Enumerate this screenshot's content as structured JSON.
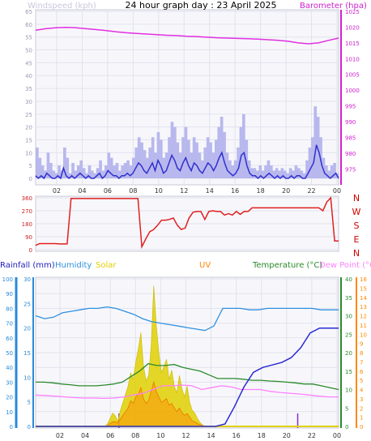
{
  "title": "24 hour graph day : 23 April 2025",
  "colors": {
    "wind_avg": "#3030d0",
    "wind_gust": "#b8b8ee",
    "barometer": "#e030e0",
    "wind_dir": "#e02020",
    "rainfall": "#2a2ad6",
    "humidity": "#3090e0",
    "solar": "#e0d000",
    "uv": "#ff8800",
    "temperature": "#2a8a2a",
    "dewpoint": "#ff80ff",
    "axis_blue": "#2a8ad8",
    "axis_orange": "#ff8800",
    "axis_green": "#2a8a2a",
    "axis_purple": "#8a2ad8",
    "compass": "#d00000"
  },
  "chart_data": [
    {
      "type": "line",
      "panel": "wind_barometer",
      "left_label": "Windspeed (kph)",
      "right_label": "Barometer (hpa)",
      "ylim_left": [
        0,
        65
      ],
      "left_ticks": [
        "0",
        "5",
        "10",
        "15",
        "20",
        "25",
        "30",
        "35",
        "40",
        "45",
        "50",
        "55",
        "60",
        "65"
      ],
      "ylim_right": [
        972,
        1025
      ],
      "right_ticks": [
        "975",
        "980",
        "985",
        "990",
        "995",
        "1000",
        "1005",
        "1010",
        "1015",
        "1020",
        "1025"
      ],
      "x_ticks": [
        "02",
        "04",
        "06",
        "08",
        "10",
        "12",
        "14",
        "16",
        "18",
        "20",
        "22",
        "00"
      ],
      "series": [
        {
          "name": "Windspeed",
          "values": [
            1,
            0,
            1,
            0,
            2,
            1,
            0,
            0,
            1,
            0,
            4,
            1,
            0,
            1,
            0,
            1,
            2,
            1,
            0,
            1,
            0,
            0,
            1,
            2,
            0,
            1,
            3,
            2,
            1,
            1,
            0,
            1,
            1,
            2,
            1,
            2,
            4,
            6,
            5,
            3,
            2,
            4,
            6,
            3,
            7,
            5,
            2,
            3,
            6,
            9,
            7,
            4,
            3,
            6,
            8,
            5,
            3,
            6,
            5,
            3,
            2,
            4,
            6,
            5,
            3,
            5,
            8,
            10,
            6,
            3,
            2,
            1,
            2,
            4,
            9,
            10,
            5,
            2,
            1,
            1,
            0,
            1,
            0,
            1,
            2,
            1,
            0,
            1,
            0,
            1,
            0,
            0,
            1,
            0,
            1,
            1,
            0,
            0,
            2,
            4,
            6,
            13,
            10,
            5,
            2,
            1,
            0,
            1,
            2,
            0
          ]
        },
        {
          "name": "Gusts",
          "values": [
            12,
            8,
            5,
            3,
            10,
            6,
            3,
            2,
            5,
            3,
            12,
            8,
            2,
            6,
            3,
            5,
            7,
            4,
            2,
            5,
            3,
            2,
            4,
            7,
            3,
            5,
            10,
            8,
            5,
            6,
            3,
            5,
            6,
            7,
            5,
            8,
            12,
            16,
            14,
            11,
            8,
            12,
            16,
            10,
            18,
            15,
            8,
            10,
            16,
            22,
            20,
            14,
            10,
            16,
            20,
            15,
            10,
            16,
            14,
            10,
            7,
            12,
            16,
            14,
            10,
            15,
            20,
            24,
            18,
            10,
            7,
            5,
            7,
            12,
            20,
            25,
            15,
            7,
            4,
            4,
            3,
            5,
            3,
            5,
            7,
            5,
            3,
            4,
            3,
            4,
            3,
            2,
            4,
            3,
            5,
            4,
            3,
            2,
            7,
            12,
            16,
            28,
            24,
            16,
            8,
            5,
            3,
            5,
            6,
            2
          ]
        },
        {
          "name": "Barometer",
          "values": [
            1019.0,
            1019.5,
            1019.8,
            1019.9,
            1019.8,
            1019.5,
            1019.2,
            1018.9,
            1018.5,
            1018.2,
            1018.0,
            1017.8,
            1017.6,
            1017.4,
            1017.3,
            1017.1,
            1017.0,
            1016.8,
            1016.6,
            1016.5,
            1016.4,
            1016.3,
            1016.2,
            1016.0,
            1015.8,
            1015.5,
            1015.0,
            1014.7,
            1015.0,
            1015.8,
            1016.5
          ]
        }
      ]
    },
    {
      "type": "line",
      "panel": "wind_direction",
      "ylim": [
        0,
        360
      ],
      "y_ticks": [
        "0",
        "90",
        "180",
        "270",
        "360"
      ],
      "compass_labels": [
        "N",
        "W",
        "S",
        "E",
        "N"
      ],
      "series": [
        {
          "name": "Wind direction",
          "values": [
            30,
            42,
            42,
            42,
            42,
            42,
            40,
            40,
            40,
            355,
            355,
            355,
            355,
            355,
            355,
            355,
            355,
            355,
            355,
            355,
            355,
            355,
            355,
            355,
            355,
            355,
            355,
            20,
            75,
            125,
            140,
            170,
            205,
            205,
            210,
            220,
            170,
            140,
            150,
            220,
            260,
            265,
            265,
            210,
            265,
            270,
            265,
            265,
            240,
            250,
            240,
            265,
            245,
            265,
            265,
            290,
            290,
            290,
            290,
            290,
            290,
            290,
            290,
            290,
            290,
            290,
            290,
            290,
            290,
            290,
            290,
            290,
            290,
            270,
            330,
            360,
            60,
            60
          ]
        }
      ]
    },
    {
      "type": "line",
      "panel": "rain_temperature",
      "legend": [
        "Rainfall (mm)",
        "Humidity",
        "Solar",
        "UV",
        "Temperature (°C)",
        "Dew Point (°C)"
      ],
      "x_ticks": [
        "02",
        "04",
        "06",
        "08",
        "10",
        "12",
        "14",
        "16",
        "18",
        "20",
        "22",
        "00"
      ],
      "axes": {
        "humidity_ticks": [
          "0",
          "10",
          "20",
          "30",
          "40",
          "50",
          "60",
          "70",
          "80",
          "90",
          "100"
        ],
        "rain_ticks": [
          "0",
          "5",
          "10",
          "15",
          "20",
          "25",
          "30"
        ],
        "temp_ticks": [
          "0",
          "5",
          "10",
          "15",
          "20",
          "25",
          "30",
          "35",
          "40"
        ],
        "uv_ticks": [
          "0",
          "1",
          "2",
          "3",
          "4",
          "5",
          "6",
          "7",
          "8",
          "9",
          "10",
          "11",
          "12",
          "13",
          "14",
          "15",
          "16"
        ],
        "humidity_range": [
          0,
          100
        ],
        "rain_range": [
          0,
          30
        ],
        "temp_range": [
          0,
          40
        ],
        "uv_range": [
          0,
          16
        ]
      },
      "series": [
        {
          "name": "Humidity",
          "values": [
            75,
            73,
            74,
            77,
            78,
            79,
            80,
            80,
            81,
            80,
            78,
            76,
            73,
            71,
            70,
            69,
            68,
            67,
            66,
            65,
            68,
            80,
            80,
            80,
            79,
            79,
            80,
            80,
            80,
            80,
            80,
            80,
            79,
            79,
            79
          ]
        },
        {
          "name": "Rainfall (mm)",
          "values": [
            0,
            0,
            0,
            0,
            0,
            0,
            0,
            0,
            0,
            0,
            0,
            0,
            0,
            0,
            0,
            0,
            0,
            0,
            0,
            0,
            0.5,
            4,
            8,
            11,
            12,
            12.5,
            13,
            14,
            16,
            19,
            20,
            20,
            20
          ]
        },
        {
          "name": "Temperature (°C)",
          "values": [
            12,
            12,
            11.8,
            11.5,
            11.3,
            11,
            11,
            11,
            11.2,
            11.5,
            12,
            13.5,
            15,
            17,
            16.5,
            16.5,
            16.8,
            16,
            15.5,
            15,
            14,
            13,
            13,
            13,
            12.8,
            12.5,
            12.5,
            12.3,
            12.2,
            12,
            11.8,
            11.5,
            11.5,
            11,
            10.5,
            10
          ]
        },
        {
          "name": "Dew Point (°C)",
          "values": [
            8.5,
            8.4,
            8.2,
            8,
            7.8,
            7.7,
            7.7,
            7.6,
            7.7,
            8,
            8.5,
            9,
            10,
            11,
            11,
            11.2,
            11,
            10,
            10.5,
            11,
            10.7,
            10,
            10,
            10,
            9.5,
            9.2,
            9,
            8.8,
            8.5,
            8.2,
            8,
            8
          ]
        },
        {
          "name": "Solar",
          "values": [
            0,
            0,
            0,
            0,
            0,
            0,
            0,
            0,
            0,
            0,
            0,
            0,
            0,
            0,
            0,
            0,
            0,
            0,
            0,
            0,
            0,
            0,
            0,
            0,
            0,
            0,
            0,
            0,
            2,
            6,
            10,
            8,
            4,
            12,
            18,
            24,
            30,
            40,
            35,
            48,
            58,
            70,
            45,
            34,
            38,
            60,
            105,
            75,
            55,
            40,
            45,
            50,
            35,
            42,
            30,
            25,
            38,
            28,
            22,
            30,
            18,
            12,
            10,
            6,
            3,
            1,
            0,
            0,
            0,
            0,
            0,
            0,
            0,
            0,
            0,
            0,
            0,
            0,
            0,
            0,
            0,
            0,
            0,
            0,
            0,
            0,
            0,
            0,
            0,
            0,
            0,
            0,
            0,
            0,
            0,
            0,
            0,
            0,
            0,
            0,
            0,
            0,
            0,
            0,
            0,
            0,
            0,
            0,
            0,
            0,
            0,
            0,
            0,
            0,
            0,
            0,
            0,
            0,
            0
          ]
        },
        {
          "name": "UV",
          "values": [
            0,
            0,
            0,
            0,
            0,
            0,
            0,
            0,
            0,
            0,
            0,
            0,
            0,
            0,
            0,
            0,
            0,
            0,
            0,
            0,
            0,
            0,
            0,
            0,
            0,
            0,
            0,
            0,
            0.1,
            0.3,
            0.5,
            0.5,
            0.4,
            0.8,
            1.2,
            1.6,
            2,
            2.8,
            2.5,
            3.2,
            3.5,
            4.2,
            3.0,
            2.5,
            2.8,
            3.8,
            4.8,
            3.8,
            3.2,
            2.6,
            2.8,
            3,
            2.3,
            2.5,
            2,
            1.6,
            2,
            1.5,
            1.2,
            1.4,
            1,
            0.6,
            0.5,
            0.3,
            0.2,
            0.1,
            0,
            0,
            0,
            0,
            0,
            0,
            0,
            0,
            0,
            0,
            0,
            0,
            0,
            0,
            0,
            0,
            0,
            0,
            0,
            0,
            0,
            0,
            0,
            0,
            0,
            0,
            0,
            0,
            0,
            0,
            0,
            0,
            0,
            0,
            0,
            0,
            0,
            0,
            0,
            0,
            0,
            0,
            0,
            0,
            0,
            0,
            0,
            0,
            0,
            0,
            0,
            0,
            0
          ]
        }
      ],
      "day_markers": [
        0.275,
        0.865
      ]
    }
  ]
}
